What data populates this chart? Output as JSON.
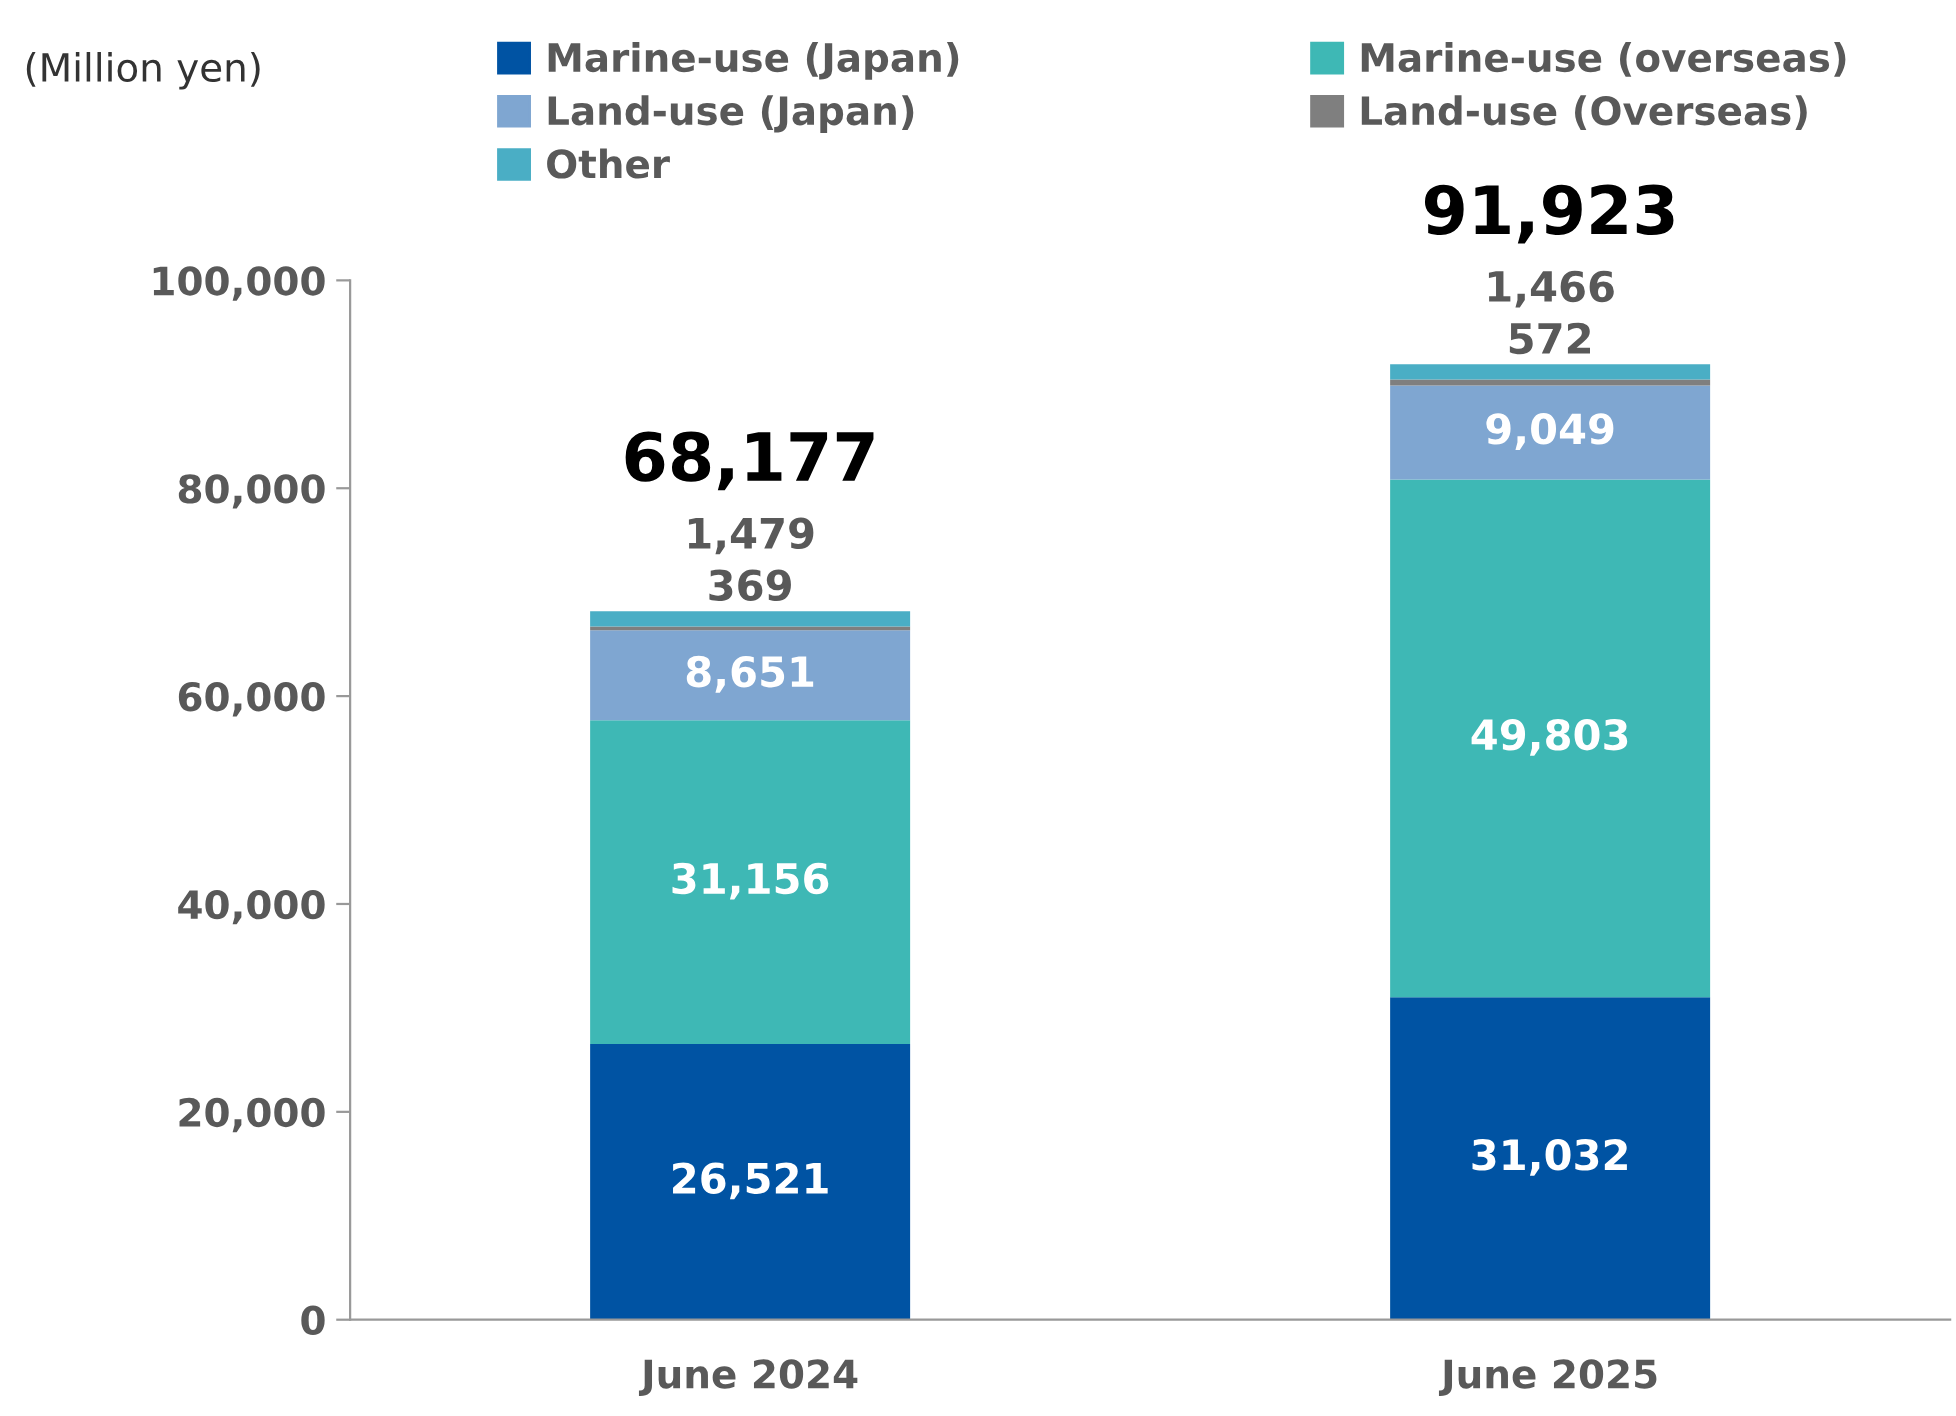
{
  "chart_data": {
    "type": "bar",
    "stacked": true,
    "ylabel": "(Million yen)",
    "categories": [
      "June 2024",
      "June 2025"
    ],
    "series": [
      {
        "name": "Marine-use (Japan)",
        "color": "#0053a3",
        "values": [
          26521,
          31032
        ],
        "value_labels": [
          "26,521",
          "31,032"
        ]
      },
      {
        "name": "Marine-use (overseas)",
        "color": "#3eb8b5",
        "values": [
          31156,
          49803
        ],
        "value_labels": [
          "31,156",
          "49,803"
        ]
      },
      {
        "name": "Land-use (Japan)",
        "color": "#7fa6d1",
        "values": [
          8651,
          9049
        ],
        "value_labels": [
          "8,651",
          "9,049"
        ]
      },
      {
        "name": "Land-use (Overseas)",
        "color": "#7f7f7f",
        "values": [
          369,
          572
        ],
        "value_labels": [
          "369",
          "572"
        ]
      },
      {
        "name": "Other",
        "color": "#4aaec5",
        "values": [
          1479,
          1466
        ],
        "value_labels": [
          "1,479",
          "1,466"
        ]
      }
    ],
    "totals": [
      "68,177",
      "91,923"
    ],
    "ylim": [
      0,
      100000
    ],
    "yticks": [
      {
        "value": 0,
        "label": "0"
      },
      {
        "value": 20000,
        "label": "20,000"
      },
      {
        "value": 40000,
        "label": "40,000"
      },
      {
        "value": 60000,
        "label": "60,000"
      },
      {
        "value": 80000,
        "label": "80,000"
      },
      {
        "value": 100000,
        "label": "100,000"
      }
    ],
    "grid": false,
    "legend": "top"
  }
}
